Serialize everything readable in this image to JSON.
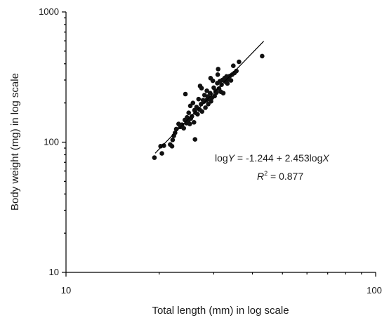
{
  "chart_data": {
    "type": "scatter",
    "xscale": "log",
    "yscale": "log",
    "xlim": [
      10,
      100
    ],
    "ylim": [
      10,
      1000
    ],
    "xlabel": "Total length (mm) in log scale",
    "ylabel": "Body weight (mg) in log scale",
    "x_ticks": [
      10,
      100
    ],
    "x_tick_labels": [
      "10",
      "100"
    ],
    "y_ticks": [
      10,
      100,
      1000
    ],
    "y_tick_labels": [
      "10",
      "100",
      "1000"
    ],
    "grid": false,
    "legend": "none",
    "equation": {
      "logy_prefix": "log",
      "logy_var": "Y",
      "rest": " = -1.244 + 2.453log",
      "x_var": "X",
      "r2_label": "R",
      "r2_sup": "2",
      "r2_value": " = 0.877"
    },
    "fit": {
      "intercept": -1.244,
      "slope": 2.453,
      "x_range": [
        19.4,
        43.5
      ]
    },
    "points": [
      [
        19.3,
        76
      ],
      [
        20.2,
        93
      ],
      [
        20.4,
        82
      ],
      [
        20.7,
        94
      ],
      [
        21.7,
        96
      ],
      [
        22.0,
        93
      ],
      [
        22.1,
        104
      ],
      [
        22.3,
        112
      ],
      [
        22.5,
        118
      ],
      [
        22.7,
        126
      ],
      [
        23.1,
        138
      ],
      [
        23.4,
        131
      ],
      [
        23.7,
        136
      ],
      [
        24.0,
        128
      ],
      [
        24.2,
        148
      ],
      [
        24.3,
        234
      ],
      [
        24.5,
        140
      ],
      [
        24.6,
        155
      ],
      [
        24.8,
        145
      ],
      [
        24.9,
        168
      ],
      [
        25.1,
        138
      ],
      [
        25.2,
        190
      ],
      [
        25.3,
        152
      ],
      [
        25.5,
        158
      ],
      [
        25.7,
        200
      ],
      [
        25.9,
        142
      ],
      [
        26.0,
        176
      ],
      [
        26.1,
        105
      ],
      [
        26.2,
        168
      ],
      [
        26.4,
        186
      ],
      [
        26.6,
        164
      ],
      [
        26.8,
        214
      ],
      [
        27.0,
        178
      ],
      [
        27.1,
        270
      ],
      [
        27.3,
        196
      ],
      [
        27.4,
        260
      ],
      [
        27.5,
        172
      ],
      [
        27.7,
        210
      ],
      [
        27.9,
        205
      ],
      [
        28.0,
        230
      ],
      [
        28.2,
        184
      ],
      [
        28.4,
        210
      ],
      [
        28.5,
        248
      ],
      [
        28.7,
        224
      ],
      [
        28.8,
        196
      ],
      [
        29.0,
        214
      ],
      [
        29.2,
        238
      ],
      [
        29.3,
        310
      ],
      [
        29.4,
        206
      ],
      [
        29.6,
        220
      ],
      [
        29.8,
        296
      ],
      [
        30.0,
        262
      ],
      [
        30.2,
        226
      ],
      [
        30.4,
        248
      ],
      [
        30.6,
        240
      ],
      [
        30.8,
        284
      ],
      [
        30.9,
        330
      ],
      [
        31.0,
        364
      ],
      [
        31.2,
        258
      ],
      [
        31.4,
        294
      ],
      [
        31.6,
        244
      ],
      [
        31.8,
        276
      ],
      [
        32.0,
        300
      ],
      [
        32.2,
        238
      ],
      [
        32.5,
        310
      ],
      [
        32.8,
        290
      ],
      [
        33.0,
        320
      ],
      [
        33.2,
        282
      ],
      [
        33.5,
        304
      ],
      [
        33.8,
        322
      ],
      [
        34.1,
        298
      ],
      [
        34.4,
        330
      ],
      [
        34.7,
        386
      ],
      [
        35.0,
        340
      ],
      [
        35.5,
        352
      ],
      [
        36.2,
        414
      ],
      [
        43.0,
        458
      ]
    ]
  }
}
